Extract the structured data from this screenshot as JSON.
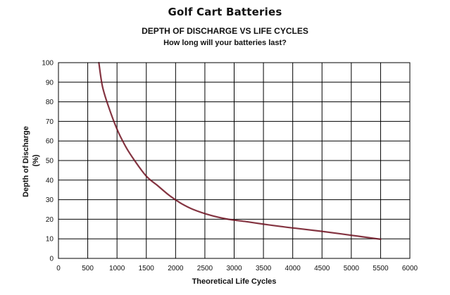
{
  "chart_data": {
    "type": "line",
    "title": "Golf Cart Batteries",
    "subtitle": "DEPTH OF DISCHARGE VS LIFE CYCLES",
    "subtitle2": "How long will your batteries last?",
    "xlabel": "Theoretical Life Cycles",
    "ylabel_line1": "Depth of Discharge",
    "ylabel_line2": "(%)",
    "xlim": [
      0,
      6000
    ],
    "ylim": [
      0,
      100
    ],
    "xticks": [
      0,
      500,
      1000,
      1500,
      2000,
      2500,
      3000,
      3500,
      4000,
      4500,
      5000,
      5500,
      6000
    ],
    "yticks": [
      0,
      10,
      20,
      30,
      40,
      50,
      60,
      70,
      80,
      90,
      100
    ],
    "grid": true,
    "series": [
      {
        "color": "#6e1020",
        "x": [
          690,
          750,
          850,
          1000,
          1150,
          1300,
          1500,
          1700,
          1900,
          2100,
          2300,
          2600,
          2900,
          3200,
          3500,
          3800,
          4100,
          4500,
          5000,
          5500
        ],
        "y": [
          100,
          88,
          78,
          66,
          57,
          50,
          42,
          37,
          32,
          28,
          25,
          22,
          20,
          18.8,
          17.5,
          16.3,
          15.2,
          13.8,
          11.8,
          9.8
        ]
      }
    ]
  }
}
